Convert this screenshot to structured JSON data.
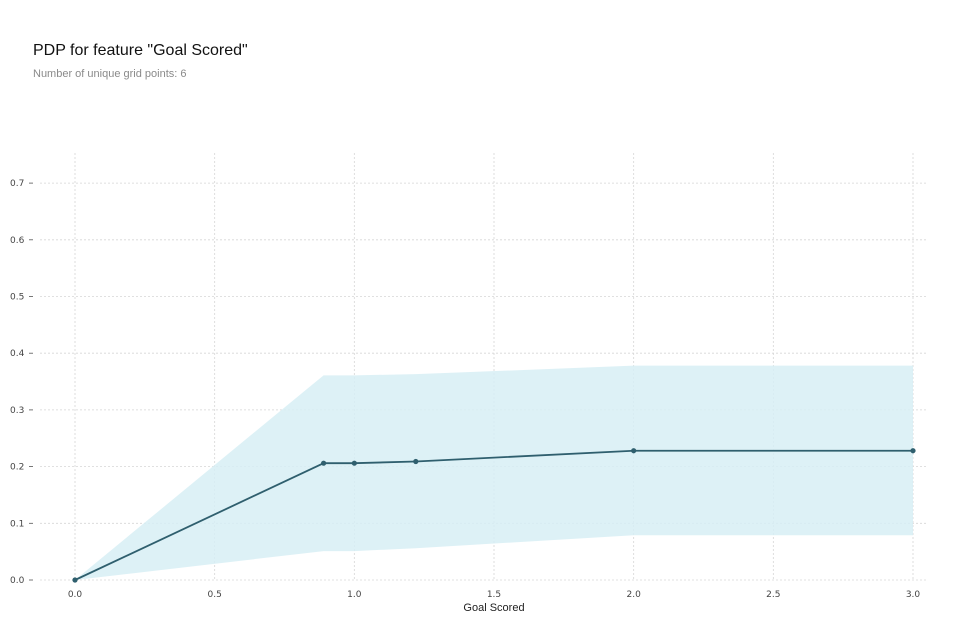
{
  "chart_data": {
    "type": "line",
    "title": "PDP for feature \"Goal Scored\"",
    "subtitle": "Number of unique grid points: 6",
    "xlabel": "Goal Scored",
    "ylabel": "",
    "xlim": [
      0,
      3
    ],
    "ylim": [
      0,
      0.75
    ],
    "x_ticks": [
      0.0,
      0.5,
      1.0,
      1.5,
      2.0,
      2.5,
      3.0
    ],
    "x_tick_labels": [
      "0.0",
      "0.5",
      "1.0",
      "1.5",
      "2.0",
      "2.5",
      "3.0"
    ],
    "y_ticks": [
      0.0,
      0.1,
      0.2,
      0.3,
      0.4,
      0.5,
      0.6,
      0.7
    ],
    "y_tick_labels": [
      "0.0",
      "0.1",
      "0.2",
      "0.3",
      "0.4",
      "0.5",
      "0.6",
      "0.7"
    ],
    "grid": true,
    "series": [
      {
        "x": [
          0.0,
          0.89,
          1.0,
          1.22,
          2.0,
          3.0
        ],
        "values": [
          0.0,
          0.206,
          0.206,
          0.209,
          0.228,
          0.228
        ],
        "lower": [
          0.0,
          0.051,
          0.051,
          0.056,
          0.079,
          0.079
        ],
        "upper": [
          0.0,
          0.361,
          0.361,
          0.363,
          0.378,
          0.378
        ]
      }
    ],
    "colors": {
      "line": "#2f5f6e",
      "band": "#d7eff5",
      "grid": "#d6d6d6"
    }
  }
}
